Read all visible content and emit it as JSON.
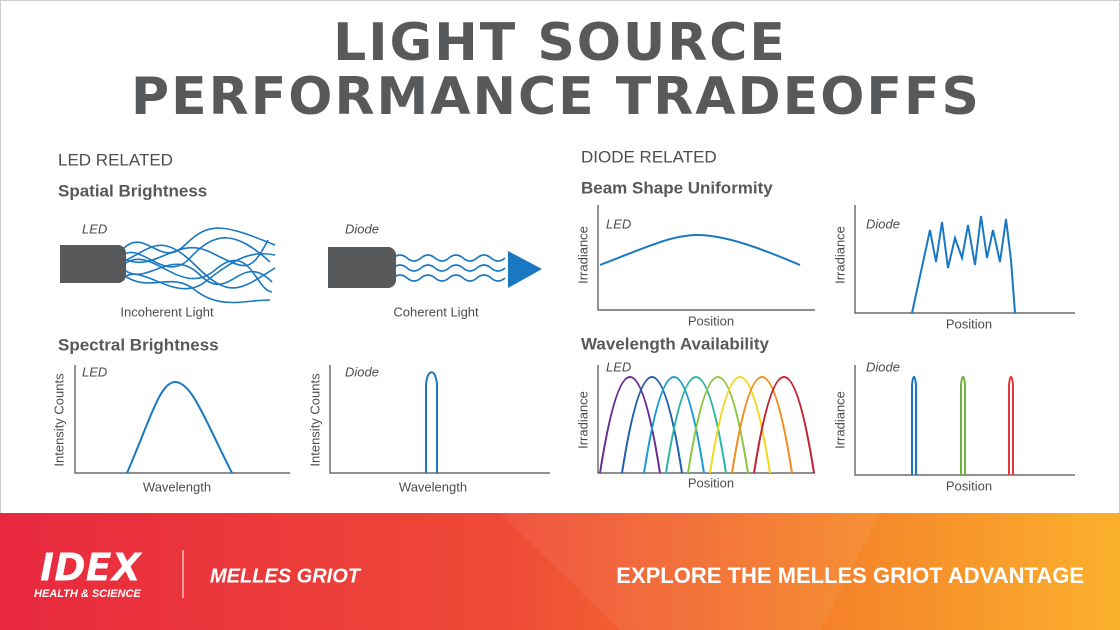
{
  "header": {
    "title": [
      "LIGHT SOURCE",
      "PERFORMANCE TRADEOFFS"
    ]
  },
  "led_related": {
    "heading": "LED RELATED",
    "spatial_brightness": {
      "title": "Spatial Brightness",
      "led": {
        "label": "LED",
        "caption": "Incoherent Light"
      },
      "diode": {
        "label": "Diode",
        "caption": "Coherent Light"
      }
    },
    "spectral_brightness": {
      "title": "Spectral Brightness",
      "led": {
        "label": "LED",
        "y_label": "Intensity Counts",
        "x_label": "Wavelength"
      },
      "diode": {
        "label": "Diode",
        "y_label": "Intensity Counts",
        "x_label": "Wavelength"
      }
    }
  },
  "diode_related": {
    "heading": "DIODE RELATED",
    "beam_shape_uniformity": {
      "title": "Beam Shape Uniformity",
      "led": {
        "label": "LED",
        "y_label": "Irradiance",
        "x_label": "Position"
      },
      "diode": {
        "label": "Diode",
        "y_label": "Irradiance",
        "x_label": "Position"
      }
    },
    "wavelength_availability": {
      "title": "Wavelength Availability",
      "led": {
        "label": "LED",
        "y_label": "Irradiance",
        "x_label": "Position"
      },
      "diode": {
        "label": "Diode",
        "y_label": "Irradiance",
        "x_label": "Position"
      }
    }
  },
  "footer": {
    "brand": "IDEX",
    "brand_sub": "HEALTH & SCIENCE",
    "partner": "MELLES GRIOT",
    "cta": "EXPLORE THE MELLES GRIOT ADVANTAGE"
  }
}
